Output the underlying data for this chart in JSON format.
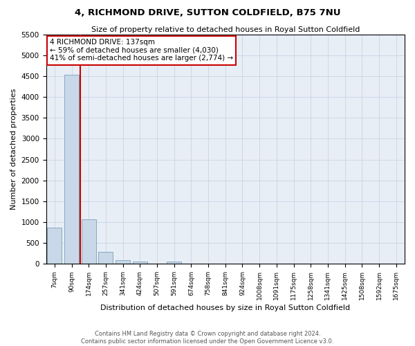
{
  "title": "4, RICHMOND DRIVE, SUTTON COLDFIELD, B75 7NU",
  "subtitle": "Size of property relative to detached houses in Royal Sutton Coldfield",
  "xlabel": "Distribution of detached houses by size in Royal Sutton Coldfield",
  "ylabel": "Number of detached properties",
  "footnote1": "Contains HM Land Registry data © Crown copyright and database right 2024.",
  "footnote2": "Contains public sector information licensed under the Open Government Licence v3.0.",
  "annotation_title": "4 RICHMOND DRIVE: 137sqm",
  "annotation_line1": "← 59% of detached houses are smaller (4,030)",
  "annotation_line2": "41% of semi-detached houses are larger (2,774) →",
  "bar_color": "#c8d8e8",
  "bar_edge_color": "#7aa0b8",
  "vline_color": "#cc0000",
  "annotation_box_edgecolor": "#cc0000",
  "grid_color": "#c8d4e4",
  "bg_color": "#e8eef6",
  "ylim": [
    0,
    5500
  ],
  "yticks": [
    0,
    500,
    1000,
    1500,
    2000,
    2500,
    3000,
    3500,
    4000,
    4500,
    5000,
    5500
  ],
  "categories": [
    "7sqm",
    "90sqm",
    "174sqm",
    "257sqm",
    "341sqm",
    "424sqm",
    "507sqm",
    "591sqm",
    "674sqm",
    "758sqm",
    "841sqm",
    "924sqm",
    "1008sqm",
    "1091sqm",
    "1175sqm",
    "1258sqm",
    "1341sqm",
    "1425sqm",
    "1508sqm",
    "1592sqm",
    "1675sqm"
  ],
  "values": [
    870,
    4530,
    1060,
    290,
    90,
    50,
    0,
    50,
    0,
    0,
    0,
    0,
    0,
    0,
    0,
    0,
    0,
    0,
    0,
    0,
    0
  ],
  "vline_index": 1.5,
  "figsize": [
    6.0,
    5.0
  ],
  "dpi": 100
}
